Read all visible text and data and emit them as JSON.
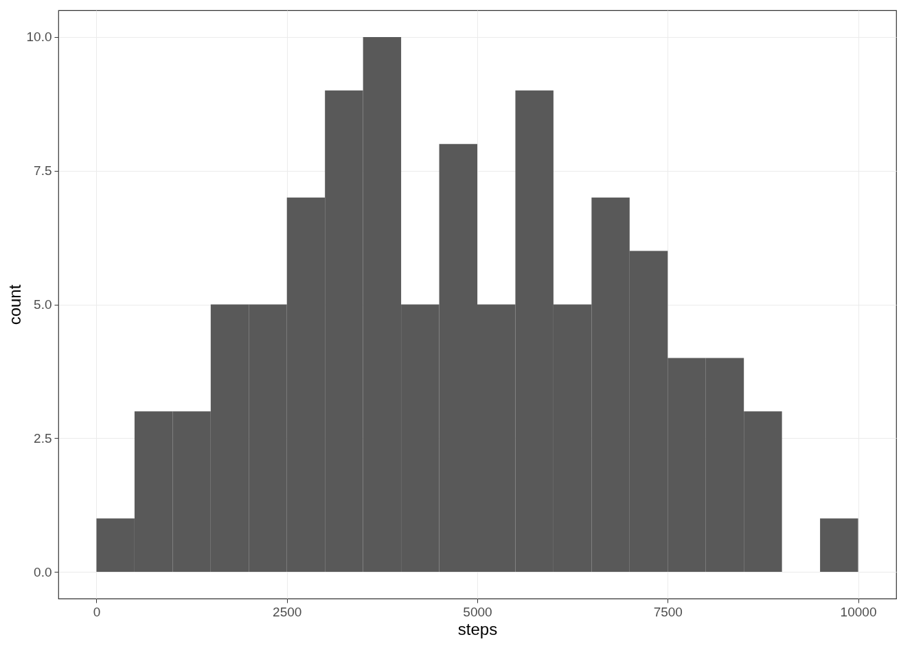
{
  "chart_data": {
    "type": "histogram",
    "xlabel": "steps",
    "ylabel": "count",
    "color": "#595959",
    "bins": [
      0,
      500,
      1000,
      1500,
      2000,
      2500,
      3000,
      3500,
      4000,
      4500,
      5000,
      5500,
      6000,
      6500,
      7000,
      7500,
      8000,
      8500,
      9000,
      9500,
      10000
    ],
    "values": [
      1,
      3,
      3,
      5,
      5,
      7,
      9,
      10,
      5,
      8,
      5,
      9,
      5,
      7,
      6,
      4,
      4,
      3,
      0,
      1
    ],
    "xlim": [
      -500,
      10500
    ],
    "xticks": [
      0,
      2500,
      5000,
      7500,
      10000
    ],
    "ylim": [
      -0.5,
      10.5
    ],
    "yticks": [
      {
        "value": 0,
        "label": "0.0"
      },
      2.5,
      {
        "value": 5,
        "label": "5.0"
      },
      7.5,
      {
        "value": 10,
        "label": "10.0"
      }
    ],
    "grid": true
  }
}
